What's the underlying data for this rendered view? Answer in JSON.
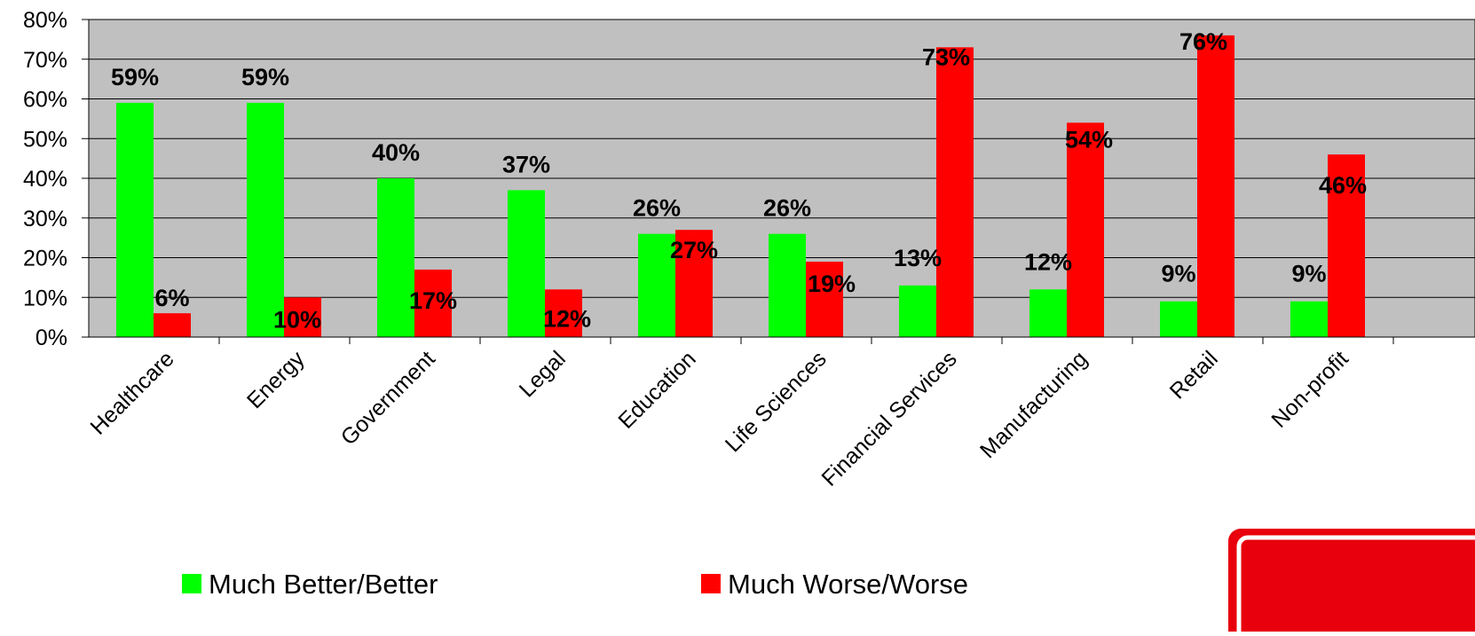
{
  "chart_data": {
    "type": "bar",
    "title": "",
    "xlabel": "",
    "ylabel": "",
    "categories": [
      "Healthcare",
      "Energy",
      "Government",
      "Legal",
      "Education",
      "Life Sciences",
      "Financial Services",
      "Manufacturing",
      "Retail",
      "Non-profit"
    ],
    "series": [
      {
        "name": "Much Better/Better",
        "color": "#00ff00",
        "values": [
          59,
          59,
          40,
          37,
          26,
          26,
          13,
          12,
          9,
          9
        ],
        "labels": [
          "59%",
          "59%",
          "40%",
          "37%",
          "26%",
          "26%",
          "13%",
          "12%",
          "9%",
          "9%"
        ]
      },
      {
        "name": "Much Worse/Worse",
        "color": "#ff0000",
        "values": [
          6,
          10,
          17,
          12,
          27,
          19,
          73,
          54,
          76,
          46
        ],
        "labels": [
          "6%",
          "10%",
          "17%",
          "12%",
          "27%",
          "19%",
          "73%",
          "54%",
          "76%",
          "46%"
        ]
      }
    ],
    "ylim": [
      0,
      80
    ],
    "yticks": [
      0,
      10,
      20,
      30,
      40,
      50,
      60,
      70,
      80
    ],
    "ytick_labels": [
      "0%",
      "10%",
      "20%",
      "30%",
      "40%",
      "50%",
      "60%",
      "70%",
      "80%"
    ],
    "grid": true,
    "plot_background": "#c0c0c0",
    "legend_position": "bottom"
  },
  "logo": {
    "color": "#e8000c",
    "icon": "brand-logo-icon"
  }
}
